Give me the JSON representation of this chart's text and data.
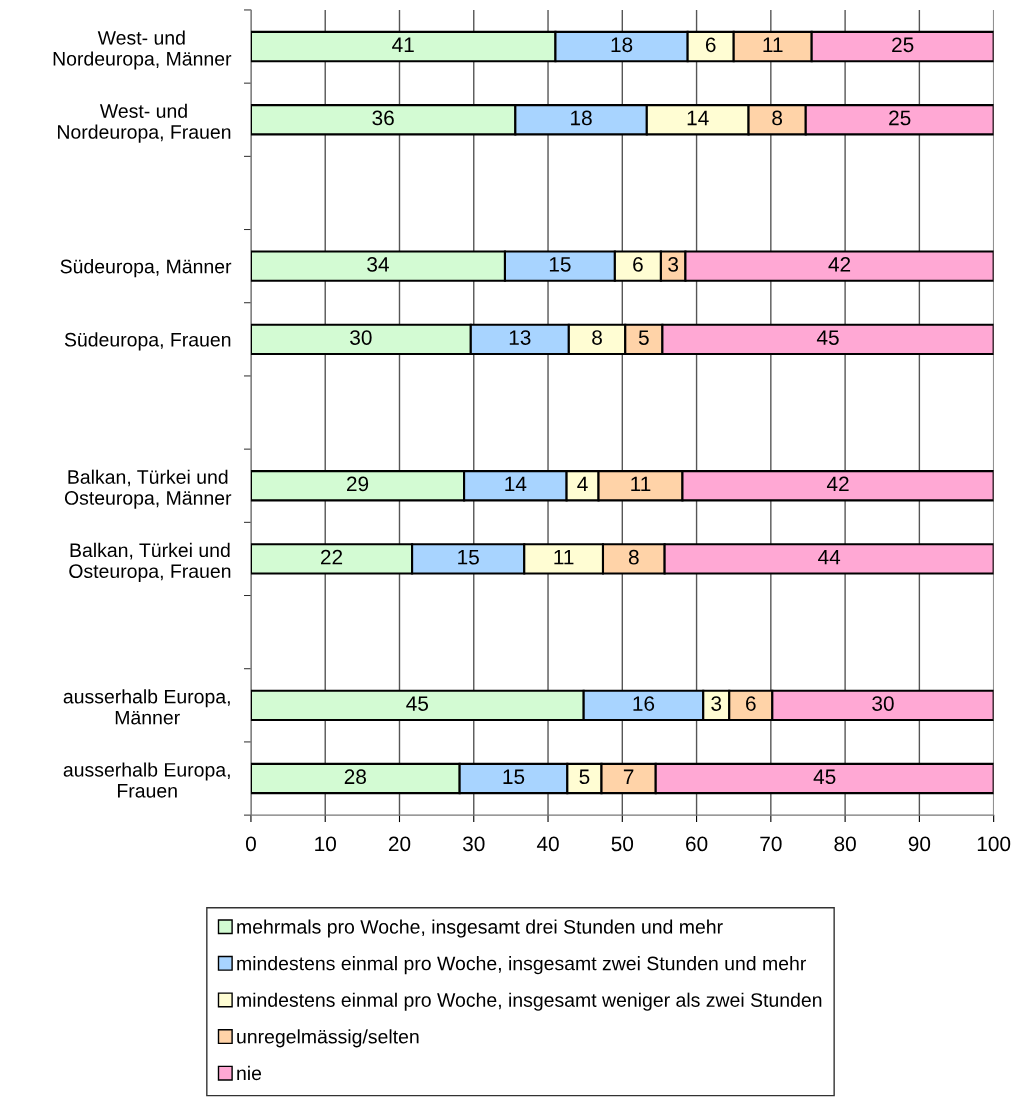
{
  "chart_data": {
    "type": "bar",
    "orientation": "horizontal",
    "stacked": true,
    "categories": [
      "West- und\nNordeuropa, Männer",
      "West- und\nNordeuropa, Frauen",
      null,
      "Südeuropa, Männer",
      "Südeuropa, Frauen",
      null,
      "Balkan, Türkei und\nOsteuropa, Männer",
      "Balkan, Türkei und\nOsteuropa, Frauen",
      null,
      "ausserhalb Europa,\nMänner",
      "ausserhalb Europa,\nFrauen"
    ],
    "series": [
      {
        "name": "mehrmals pro Woche, insgesamt drei Stunden und mehr",
        "color": "#d3fbd3",
        "values": [
          41.0,
          35.6,
          null,
          34.2,
          29.6,
          null,
          28.7,
          21.7,
          null,
          44.8,
          28.1
        ],
        "value_labels": [
          "41",
          "36",
          null,
          "34",
          "30",
          null,
          "29",
          "22",
          null,
          "45",
          "28"
        ]
      },
      {
        "name": "mindestens einmal pro Woche, insgesamt zwei Stunden und mehr",
        "color": "#a8d4ff",
        "values": [
          17.8,
          17.7,
          null,
          14.8,
          13.2,
          null,
          13.8,
          15.1,
          null,
          16.1,
          14.5
        ],
        "value_labels": [
          "18",
          "18",
          null,
          "15",
          "13",
          null,
          "14",
          "15",
          null,
          "16",
          "15"
        ]
      },
      {
        "name": "mindestens einmal pro Woche, insgesamt weniger als zwei Stunden",
        "color": "#fffdd3",
        "values": [
          6.2,
          13.7,
          null,
          6.2,
          7.6,
          null,
          4.3,
          10.6,
          null,
          3.5,
          4.6
        ],
        "value_labels": [
          "6",
          "14",
          null,
          "6",
          "8",
          null,
          "4",
          "11",
          null,
          "3",
          "5"
        ]
      },
      {
        "name": "unregelmässig/selten",
        "color": "#ffd3a8",
        "values": [
          10.5,
          7.7,
          null,
          3.3,
          5.0,
          null,
          11.3,
          8.3,
          null,
          5.8,
          7.3
        ],
        "value_labels": [
          "11",
          "8",
          null,
          "3",
          "5",
          null,
          "11",
          "8",
          null,
          "6",
          "7"
        ]
      },
      {
        "name": "nie",
        "color": "#ffa8d4",
        "values": [
          24.5,
          25.3,
          null,
          41.5,
          44.6,
          null,
          41.9,
          44.3,
          null,
          29.8,
          45.5
        ],
        "value_labels": [
          "25",
          "25",
          null,
          "42",
          "45",
          null,
          "42",
          "44",
          null,
          "30",
          "45"
        ]
      }
    ],
    "xlim": [
      0,
      100
    ],
    "xticks": [
      0,
      10,
      20,
      30,
      40,
      50,
      60,
      70,
      80,
      90,
      100
    ],
    "grid": "x",
    "legend": "bottom"
  }
}
